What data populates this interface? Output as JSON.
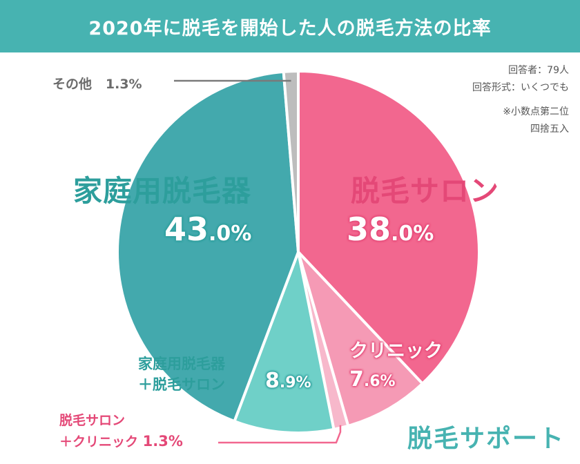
{
  "banner": {
    "title": "2020年に脱毛を開始した人の脱毛方法の比率"
  },
  "notes": {
    "respondents": "回答者：79人",
    "format": "回答形式：いくつでも",
    "rounding_1": "※小数点第二位",
    "rounding_2": "四捨五入"
  },
  "chart_data": {
    "type": "pie",
    "title": "2020年に脱毛を開始した人の脱毛方法の比率",
    "slices": [
      {
        "label": "脱毛サロン",
        "value": 38.0,
        "display_int": "38",
        "display_dec": ".0%",
        "color": "#f2678f"
      },
      {
        "label": "クリニック",
        "value": 7.6,
        "display_int": "7",
        "display_dec": ".6%",
        "color": "#f59ab5"
      },
      {
        "label": "脱毛サロン＋クリニック",
        "label_line1": "脱毛サロン",
        "label_line2": "＋クリニック",
        "value": 1.3,
        "display": "1.3%",
        "color": "#f7b8cb"
      },
      {
        "label": "家庭用脱毛器＋脱毛サロン",
        "label_line1": "家庭用脱毛器",
        "label_line2": "＋脱毛サロン",
        "value": 8.9,
        "display_int": "8",
        "display_dec": ".9%",
        "color": "#6fd0c8"
      },
      {
        "label": "家庭用脱毛器",
        "value": 43.0,
        "display_int": "43",
        "display_dec": ".0%",
        "color": "#43a9ad"
      },
      {
        "label": "その他",
        "value": 1.3,
        "display": "1.3%",
        "color": "#bdbdbd"
      }
    ]
  },
  "brand": {
    "name": "脱毛サポート"
  }
}
